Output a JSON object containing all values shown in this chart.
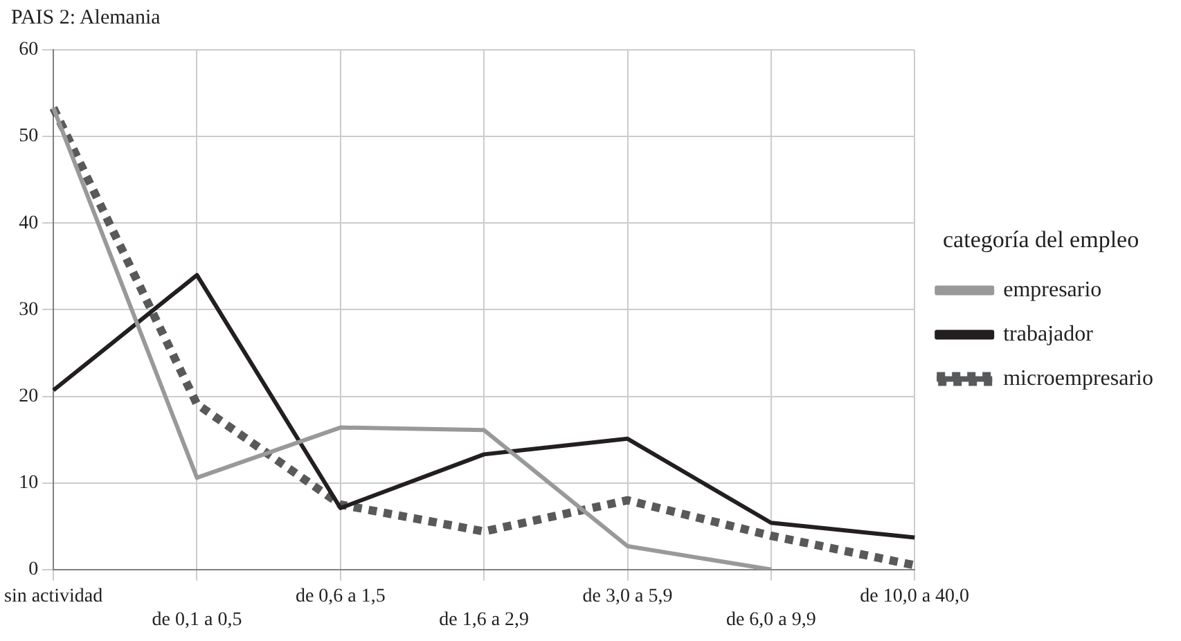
{
  "chart_data": {
    "type": "line",
    "title": "PAIS 2: Alemania",
    "legend_title": "categoría del empleo",
    "categories": [
      "sin actividad",
      "de 0,1 a 0,5",
      "de 0,6 a 1,5",
      "de 1,6 a 2,9",
      "de 3,0 a 5,9",
      "de 6,0 a 9,9",
      "de 10,0 a 40,0"
    ],
    "series": [
      {
        "name": "empresario",
        "color": "#999999",
        "line_style": "solid",
        "values": [
          53.3,
          10.6,
          16.4,
          16.1,
          2.7,
          0,
          null
        ]
      },
      {
        "name": "trabajador",
        "color": "#231f20",
        "line_style": "solid",
        "values": [
          20.7,
          34,
          7.1,
          13.3,
          15.1,
          5.4,
          3.7
        ]
      },
      {
        "name": "microempresario",
        "color": "#58595b",
        "line_style": "dotted",
        "values": [
          53.3,
          19.1,
          7.5,
          4.4,
          8,
          3.9,
          0.5
        ]
      }
    ],
    "ylim": [
      0,
      60
    ],
    "yticks": [
      0,
      10,
      20,
      30,
      40,
      50,
      60
    ],
    "grid": true,
    "legend": "right",
    "marker": "none"
  }
}
